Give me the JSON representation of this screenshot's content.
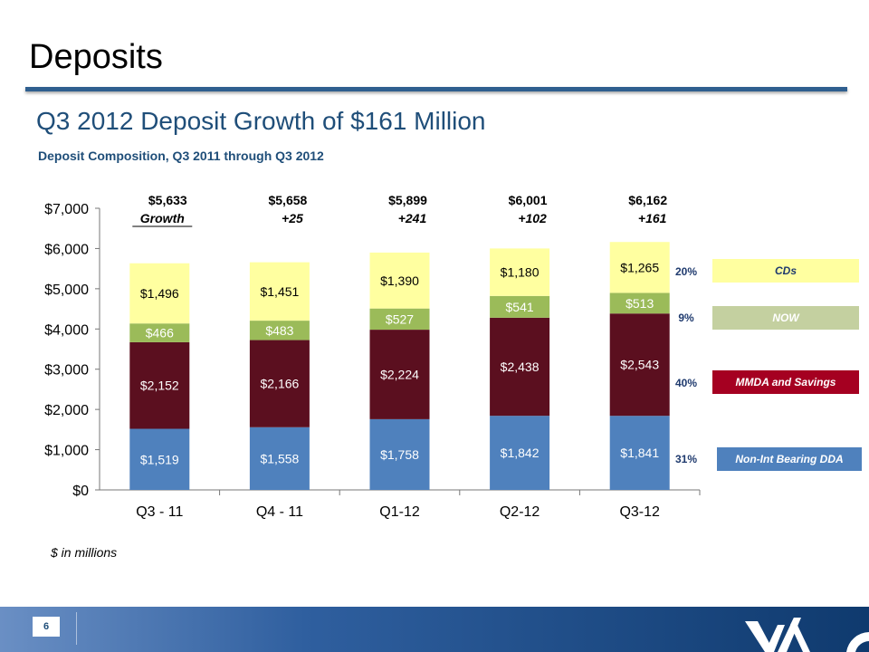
{
  "slide": {
    "title": "Deposits",
    "subtitle": "Q3 2012 Deposit Growth of $161 Million",
    "caption": "Deposit Composition, Q3 2011 through Q3 2012",
    "note": "$ in millions",
    "page_number": "6"
  },
  "chart_data": {
    "type": "bar",
    "stacked": true,
    "categories": [
      "Q3 - 11",
      "Q4 - 11",
      "Q1-12",
      "Q2-12",
      "Q3-12"
    ],
    "ylim": [
      0,
      7000
    ],
    "yticks": [
      "$0",
      "$1,000",
      "$2,000",
      "$3,000",
      "$4,000",
      "$5,000",
      "$6,000",
      "$7,000"
    ],
    "series": [
      {
        "name": "Non-Int Bearing DDA",
        "color": "#4f81bd",
        "label_color": "#ffffff",
        "values": [
          1519,
          1558,
          1758,
          1842,
          1841
        ],
        "labels": [
          "$1,519",
          "$1,558",
          "$1,758",
          "$1,842",
          "$1,841"
        ]
      },
      {
        "name": "MMDA and Savings",
        "color": "#5b0f1f",
        "label_color": "#ffffff",
        "values": [
          2152,
          2166,
          2224,
          2438,
          2543
        ],
        "labels": [
          "$2,152",
          "$2,166",
          "$2,224",
          "$2,438",
          "$2,543"
        ]
      },
      {
        "name": "NOW",
        "color": "#9bbb59",
        "label_color": "#ffffff",
        "values": [
          466,
          483,
          527,
          541,
          513
        ],
        "labels": [
          "$466",
          "$483",
          "$527",
          "$541",
          "$513"
        ]
      },
      {
        "name": "CDs",
        "color": "#ffffa0",
        "label_color": "#000000",
        "values": [
          1496,
          1451,
          1390,
          1180,
          1265
        ],
        "labels": [
          "$1,496",
          "$1,451",
          "$1,390",
          "$1,180",
          "$1,265"
        ]
      }
    ],
    "totals": [
      "$5,633",
      "$5,658",
      "$5,899",
      "$6,001",
      "$6,162"
    ],
    "growth": [
      "Growth",
      "+25",
      "+241",
      "+102",
      "+161"
    ]
  },
  "legend": [
    {
      "label": "CDs",
      "pct": "20%",
      "bg": "#ffffa0",
      "fg": "#1f3a6e"
    },
    {
      "label": "NOW",
      "pct": "9%",
      "bg": "#c4d0a0",
      "fg": "#ffffff"
    },
    {
      "label": "MMDA and Savings",
      "pct": "40%",
      "bg": "#a50021",
      "fg": "#ffffff"
    },
    {
      "label": "Non-Int Bearing DDA",
      "pct": "31%",
      "bg": "#4f81bd",
      "fg": "#ffffff"
    }
  ]
}
